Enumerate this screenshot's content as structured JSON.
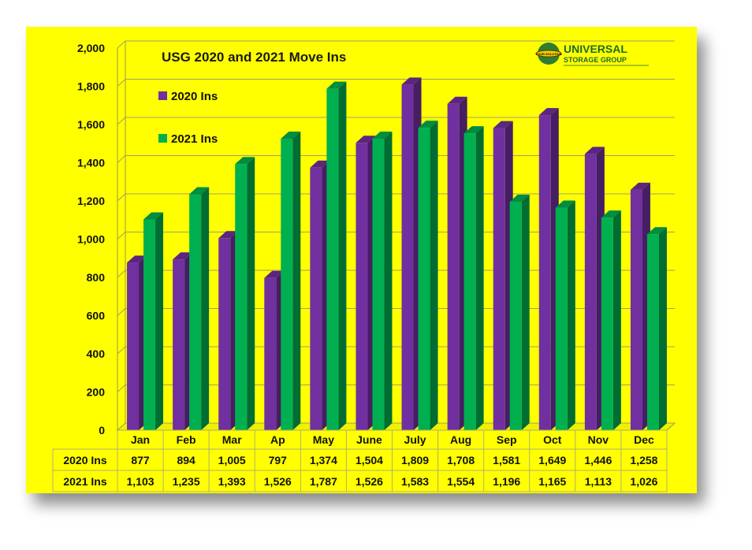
{
  "logo": {
    "line1": "UNIVERSAL",
    "line2": "STORAGE GROUP",
    "badge": "YOUR SOLUTION"
  },
  "colors": {
    "background": "#ffff00",
    "series2020": "#7030a0",
    "series2021": "#00b050"
  },
  "chart_data": {
    "type": "bar",
    "title": "USG 2020 and 2021 Move Ins",
    "categories": [
      "Jan",
      "Feb",
      "Mar",
      "Ap",
      "May",
      "June",
      "July",
      "Aug",
      "Sep",
      "Oct",
      "Nov",
      "Dec"
    ],
    "series": [
      {
        "name": "2020 Ins",
        "color": "#7030a0",
        "values": [
          877,
          894,
          1005,
          797,
          1374,
          1504,
          1809,
          1708,
          1581,
          1649,
          1446,
          1258
        ],
        "labels": [
          "877",
          "894",
          "1,005",
          "797",
          "1,374",
          "1,504",
          "1,809",
          "1,708",
          "1,581",
          "1,649",
          "1,446",
          "1,258"
        ]
      },
      {
        "name": "2021 Ins",
        "color": "#00b050",
        "values": [
          1103,
          1235,
          1393,
          1526,
          1787,
          1526,
          1583,
          1554,
          1196,
          1165,
          1113,
          1026
        ],
        "labels": [
          "1,103",
          "1,235",
          "1,393",
          "1,526",
          "1,787",
          "1,526",
          "1,583",
          "1,554",
          "1,196",
          "1,165",
          "1,113",
          "1,026"
        ]
      }
    ],
    "ylim": [
      0,
      2000
    ],
    "yticks": [
      0,
      200,
      400,
      600,
      800,
      1000,
      1200,
      1400,
      1600,
      1800,
      2000
    ],
    "ytick_labels": [
      "0",
      "200",
      "400",
      "600",
      "800",
      "1,000",
      "1,200",
      "1,400",
      "1,600",
      "1,800",
      "2,000"
    ],
    "grid": true,
    "legend": "top-left inside plot",
    "data_table": true
  }
}
